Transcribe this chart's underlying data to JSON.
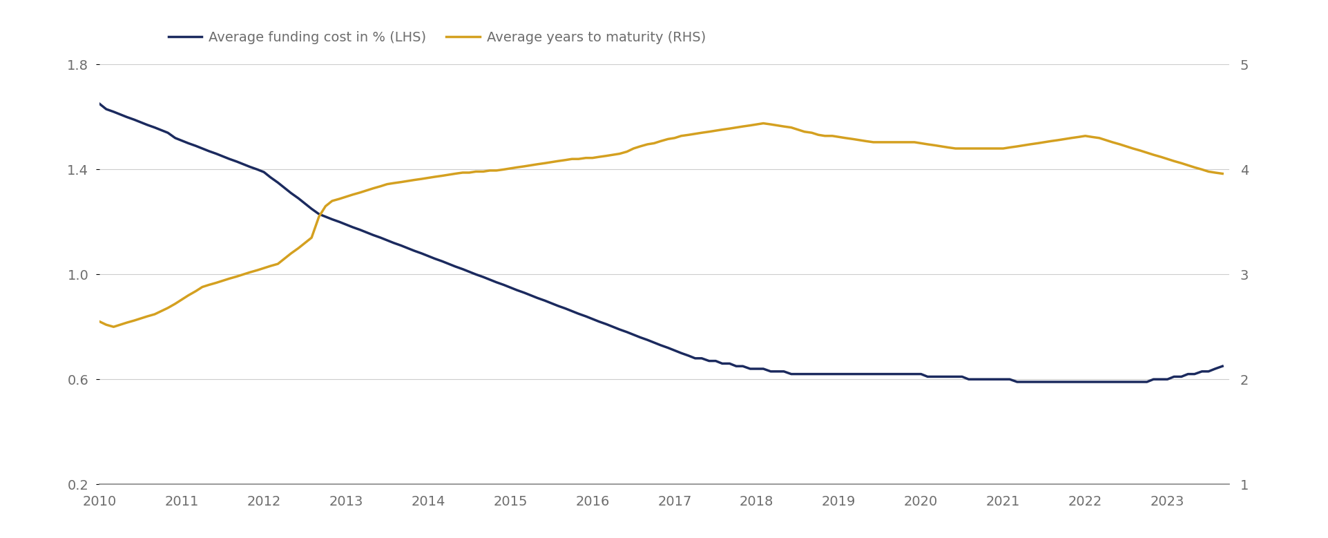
{
  "legend": [
    {
      "label": "Average funding cost in % (LHS)",
      "color": "#1b2a5e"
    },
    {
      "label": "Average years to maturity (RHS)",
      "color": "#d4a020"
    }
  ],
  "lhs_ylim": [
    0.2,
    1.8
  ],
  "rhs_ylim": [
    1.0,
    5.0
  ],
  "lhs_yticks": [
    0.2,
    0.6,
    1.0,
    1.4,
    1.8
  ],
  "rhs_yticks": [
    1,
    2,
    3,
    4,
    5
  ],
  "xlim": [
    2010.0,
    2023.75
  ],
  "xticks": [
    2010,
    2011,
    2012,
    2013,
    2014,
    2015,
    2016,
    2017,
    2018,
    2019,
    2020,
    2021,
    2022,
    2023
  ],
  "background_color": "#ffffff",
  "grid_color": "#cccccc",
  "lhs_data_x": [
    2010.0,
    2010.08,
    2010.17,
    2010.25,
    2010.33,
    2010.42,
    2010.5,
    2010.58,
    2010.67,
    2010.75,
    2010.83,
    2010.92,
    2011.0,
    2011.08,
    2011.17,
    2011.25,
    2011.33,
    2011.42,
    2011.5,
    2011.58,
    2011.67,
    2011.75,
    2011.83,
    2011.92,
    2012.0,
    2012.08,
    2012.17,
    2012.25,
    2012.33,
    2012.42,
    2012.5,
    2012.58,
    2012.67,
    2012.75,
    2012.83,
    2012.92,
    2013.0,
    2013.08,
    2013.17,
    2013.25,
    2013.33,
    2013.42,
    2013.5,
    2013.58,
    2013.67,
    2013.75,
    2013.83,
    2013.92,
    2014.0,
    2014.08,
    2014.17,
    2014.25,
    2014.33,
    2014.42,
    2014.5,
    2014.58,
    2014.67,
    2014.75,
    2014.83,
    2014.92,
    2015.0,
    2015.08,
    2015.17,
    2015.25,
    2015.33,
    2015.42,
    2015.5,
    2015.58,
    2015.67,
    2015.75,
    2015.83,
    2015.92,
    2016.0,
    2016.08,
    2016.17,
    2016.25,
    2016.33,
    2016.42,
    2016.5,
    2016.58,
    2016.67,
    2016.75,
    2016.83,
    2016.92,
    2017.0,
    2017.08,
    2017.17,
    2017.25,
    2017.33,
    2017.42,
    2017.5,
    2017.58,
    2017.67,
    2017.75,
    2017.83,
    2017.92,
    2018.0,
    2018.08,
    2018.17,
    2018.25,
    2018.33,
    2018.42,
    2018.5,
    2018.58,
    2018.67,
    2018.75,
    2018.83,
    2018.92,
    2019.0,
    2019.08,
    2019.17,
    2019.25,
    2019.33,
    2019.42,
    2019.5,
    2019.58,
    2019.67,
    2019.75,
    2019.83,
    2019.92,
    2020.0,
    2020.08,
    2020.17,
    2020.25,
    2020.33,
    2020.42,
    2020.5,
    2020.58,
    2020.67,
    2020.75,
    2020.83,
    2020.92,
    2021.0,
    2021.08,
    2021.17,
    2021.25,
    2021.33,
    2021.42,
    2021.5,
    2021.58,
    2021.67,
    2021.75,
    2021.83,
    2021.92,
    2022.0,
    2022.08,
    2022.17,
    2022.25,
    2022.33,
    2022.42,
    2022.5,
    2022.58,
    2022.67,
    2022.75,
    2022.83,
    2022.92,
    2023.0,
    2023.08,
    2023.17,
    2023.25,
    2023.33,
    2023.42,
    2023.5,
    2023.58,
    2023.67
  ],
  "lhs_data_y": [
    1.65,
    1.63,
    1.62,
    1.61,
    1.6,
    1.59,
    1.58,
    1.57,
    1.56,
    1.55,
    1.54,
    1.52,
    1.51,
    1.5,
    1.49,
    1.48,
    1.47,
    1.46,
    1.45,
    1.44,
    1.43,
    1.42,
    1.41,
    1.4,
    1.39,
    1.37,
    1.35,
    1.33,
    1.31,
    1.29,
    1.27,
    1.25,
    1.23,
    1.22,
    1.21,
    1.2,
    1.19,
    1.18,
    1.17,
    1.16,
    1.15,
    1.14,
    1.13,
    1.12,
    1.11,
    1.1,
    1.09,
    1.08,
    1.07,
    1.06,
    1.05,
    1.04,
    1.03,
    1.02,
    1.01,
    1.0,
    0.99,
    0.98,
    0.97,
    0.96,
    0.95,
    0.94,
    0.93,
    0.92,
    0.91,
    0.9,
    0.89,
    0.88,
    0.87,
    0.86,
    0.85,
    0.84,
    0.83,
    0.82,
    0.81,
    0.8,
    0.79,
    0.78,
    0.77,
    0.76,
    0.75,
    0.74,
    0.73,
    0.72,
    0.71,
    0.7,
    0.69,
    0.68,
    0.68,
    0.67,
    0.67,
    0.66,
    0.66,
    0.65,
    0.65,
    0.64,
    0.64,
    0.64,
    0.63,
    0.63,
    0.63,
    0.62,
    0.62,
    0.62,
    0.62,
    0.62,
    0.62,
    0.62,
    0.62,
    0.62,
    0.62,
    0.62,
    0.62,
    0.62,
    0.62,
    0.62,
    0.62,
    0.62,
    0.62,
    0.62,
    0.62,
    0.61,
    0.61,
    0.61,
    0.61,
    0.61,
    0.61,
    0.6,
    0.6,
    0.6,
    0.6,
    0.6,
    0.6,
    0.6,
    0.59,
    0.59,
    0.59,
    0.59,
    0.59,
    0.59,
    0.59,
    0.59,
    0.59,
    0.59,
    0.59,
    0.59,
    0.59,
    0.59,
    0.59,
    0.59,
    0.59,
    0.59,
    0.59,
    0.59,
    0.6,
    0.6,
    0.6,
    0.61,
    0.61,
    0.62,
    0.62,
    0.63,
    0.63,
    0.64,
    0.65
  ],
  "rhs_data_x": [
    2010.0,
    2010.08,
    2010.17,
    2010.25,
    2010.33,
    2010.42,
    2010.5,
    2010.58,
    2010.67,
    2010.75,
    2010.83,
    2010.92,
    2011.0,
    2011.08,
    2011.17,
    2011.25,
    2011.33,
    2011.42,
    2011.5,
    2011.58,
    2011.67,
    2011.75,
    2011.83,
    2011.92,
    2012.0,
    2012.08,
    2012.17,
    2012.25,
    2012.33,
    2012.42,
    2012.5,
    2012.58,
    2012.67,
    2012.75,
    2012.83,
    2012.92,
    2013.0,
    2013.08,
    2013.17,
    2013.25,
    2013.33,
    2013.42,
    2013.5,
    2013.58,
    2013.67,
    2013.75,
    2013.83,
    2013.92,
    2014.0,
    2014.08,
    2014.17,
    2014.25,
    2014.33,
    2014.42,
    2014.5,
    2014.58,
    2014.67,
    2014.75,
    2014.83,
    2014.92,
    2015.0,
    2015.08,
    2015.17,
    2015.25,
    2015.33,
    2015.42,
    2015.5,
    2015.58,
    2015.67,
    2015.75,
    2015.83,
    2015.92,
    2016.0,
    2016.08,
    2016.17,
    2016.25,
    2016.33,
    2016.42,
    2016.5,
    2016.58,
    2016.67,
    2016.75,
    2016.83,
    2016.92,
    2017.0,
    2017.08,
    2017.17,
    2017.25,
    2017.33,
    2017.42,
    2017.5,
    2017.58,
    2017.67,
    2017.75,
    2017.83,
    2017.92,
    2018.0,
    2018.08,
    2018.17,
    2018.25,
    2018.33,
    2018.42,
    2018.5,
    2018.58,
    2018.67,
    2018.75,
    2018.83,
    2018.92,
    2019.0,
    2019.08,
    2019.17,
    2019.25,
    2019.33,
    2019.42,
    2019.5,
    2019.58,
    2019.67,
    2019.75,
    2019.83,
    2019.92,
    2020.0,
    2020.08,
    2020.17,
    2020.25,
    2020.33,
    2020.42,
    2020.5,
    2020.58,
    2020.67,
    2020.75,
    2020.83,
    2020.92,
    2021.0,
    2021.08,
    2021.17,
    2021.25,
    2021.33,
    2021.42,
    2021.5,
    2021.58,
    2021.67,
    2021.75,
    2021.83,
    2021.92,
    2022.0,
    2022.08,
    2022.17,
    2022.25,
    2022.33,
    2022.42,
    2022.5,
    2022.58,
    2022.67,
    2022.75,
    2022.83,
    2022.92,
    2023.0,
    2023.08,
    2023.17,
    2023.25,
    2023.33,
    2023.42,
    2023.5,
    2023.58,
    2023.67
  ],
  "rhs_data_y": [
    2.55,
    2.52,
    2.5,
    2.52,
    2.54,
    2.56,
    2.58,
    2.6,
    2.62,
    2.65,
    2.68,
    2.72,
    2.76,
    2.8,
    2.84,
    2.88,
    2.9,
    2.92,
    2.94,
    2.96,
    2.98,
    3.0,
    3.02,
    3.04,
    3.06,
    3.08,
    3.1,
    3.15,
    3.2,
    3.25,
    3.3,
    3.35,
    3.55,
    3.65,
    3.7,
    3.72,
    3.74,
    3.76,
    3.78,
    3.8,
    3.82,
    3.84,
    3.86,
    3.87,
    3.88,
    3.89,
    3.9,
    3.91,
    3.92,
    3.93,
    3.94,
    3.95,
    3.96,
    3.97,
    3.97,
    3.98,
    3.98,
    3.99,
    3.99,
    4.0,
    4.01,
    4.02,
    4.03,
    4.04,
    4.05,
    4.06,
    4.07,
    4.08,
    4.09,
    4.1,
    4.1,
    4.11,
    4.11,
    4.12,
    4.13,
    4.14,
    4.15,
    4.17,
    4.2,
    4.22,
    4.24,
    4.25,
    4.27,
    4.29,
    4.3,
    4.32,
    4.33,
    4.34,
    4.35,
    4.36,
    4.37,
    4.38,
    4.39,
    4.4,
    4.41,
    4.42,
    4.43,
    4.44,
    4.43,
    4.42,
    4.41,
    4.4,
    4.38,
    4.36,
    4.35,
    4.33,
    4.32,
    4.32,
    4.31,
    4.3,
    4.29,
    4.28,
    4.27,
    4.26,
    4.26,
    4.26,
    4.26,
    4.26,
    4.26,
    4.26,
    4.25,
    4.24,
    4.23,
    4.22,
    4.21,
    4.2,
    4.2,
    4.2,
    4.2,
    4.2,
    4.2,
    4.2,
    4.2,
    4.21,
    4.22,
    4.23,
    4.24,
    4.25,
    4.26,
    4.27,
    4.28,
    4.29,
    4.3,
    4.31,
    4.32,
    4.31,
    4.3,
    4.28,
    4.26,
    4.24,
    4.22,
    4.2,
    4.18,
    4.16,
    4.14,
    4.12,
    4.1,
    4.08,
    4.06,
    4.04,
    4.02,
    4.0,
    3.98,
    3.97,
    3.96
  ],
  "lhs_line_color": "#1b2a5e",
  "rhs_line_color": "#d4a020",
  "line_width": 2.5,
  "font_color": "#6d6d6d",
  "tick_fontsize": 14,
  "legend_fontsize": 14
}
